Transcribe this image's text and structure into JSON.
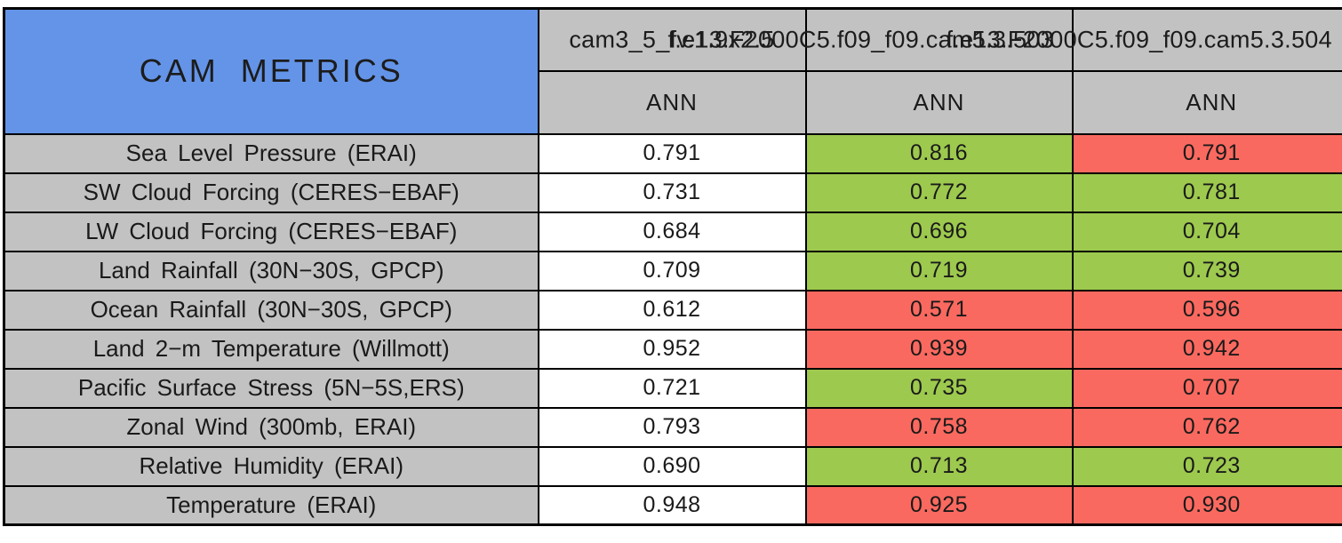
{
  "chart_data": {
    "type": "table",
    "title": "CAM METRICS",
    "columns": [
      {
        "case": "cam3_5_fv.1.9x2.5",
        "season": "ANN"
      },
      {
        "case": "f.e13.F2000C5.f09_f09.cam5.3.503",
        "season": "ANN"
      },
      {
        "case": "f.e13.F2000C5.f09_f09.cam5.3.504",
        "season": "ANN"
      }
    ],
    "rows": [
      {
        "metric": "Sea Level Pressure (ERAI)",
        "values": [
          "0.791",
          "0.816",
          "0.791"
        ],
        "colors": [
          "white",
          "green",
          "red"
        ]
      },
      {
        "metric": "SW Cloud Forcing (CERES−EBAF)",
        "values": [
          "0.731",
          "0.772",
          "0.781"
        ],
        "colors": [
          "white",
          "green",
          "green"
        ]
      },
      {
        "metric": "LW Cloud Forcing (CERES−EBAF)",
        "values": [
          "0.684",
          "0.696",
          "0.704"
        ],
        "colors": [
          "white",
          "green",
          "green"
        ]
      },
      {
        "metric": "Land Rainfall (30N−30S, GPCP)",
        "values": [
          "0.709",
          "0.719",
          "0.739"
        ],
        "colors": [
          "white",
          "green",
          "green"
        ]
      },
      {
        "metric": "Ocean Rainfall (30N−30S, GPCP)",
        "values": [
          "0.612",
          "0.571",
          "0.596"
        ],
        "colors": [
          "white",
          "red",
          "red"
        ]
      },
      {
        "metric": "Land 2−m Temperature (Willmott)",
        "values": [
          "0.952",
          "0.939",
          "0.942"
        ],
        "colors": [
          "white",
          "red",
          "red"
        ]
      },
      {
        "metric": "Pacific Surface Stress (5N−5S,ERS)",
        "values": [
          "0.721",
          "0.735",
          "0.707"
        ],
        "colors": [
          "white",
          "green",
          "red"
        ]
      },
      {
        "metric": "Zonal Wind (300mb, ERAI)",
        "values": [
          "0.793",
          "0.758",
          "0.762"
        ],
        "colors": [
          "white",
          "red",
          "red"
        ]
      },
      {
        "metric": "Relative Humidity (ERAI)",
        "values": [
          "0.690",
          "0.713",
          "0.723"
        ],
        "colors": [
          "white",
          "green",
          "green"
        ]
      },
      {
        "metric": "Temperature (ERAI)",
        "values": [
          "0.948",
          "0.925",
          "0.930"
        ],
        "colors": [
          "white",
          "red",
          "red"
        ]
      }
    ]
  },
  "colors": {
    "white": "#ffffff",
    "green": "#9DC94E",
    "red": "#FA695F",
    "blue": "#6494E8",
    "gray": "#C2C2C2"
  }
}
